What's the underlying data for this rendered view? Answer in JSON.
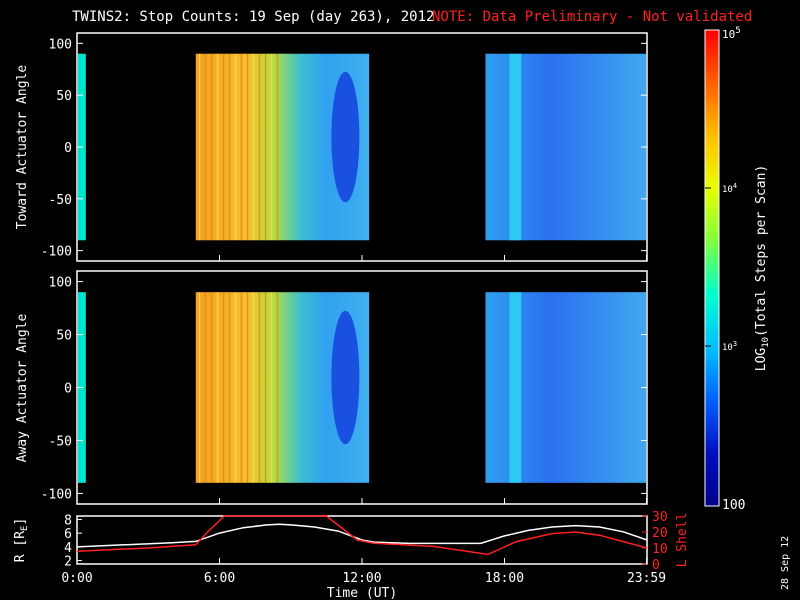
{
  "title": "TWINS2: Stop Counts: 19 Sep (day 263), 2012",
  "note": "NOTE: Data Preliminary - Not validated",
  "date_stamp": "28 Sep 12",
  "chart_data": [
    {
      "type": "heatmap",
      "ylabel": "Toward Actuator Angle",
      "yticks": [
        "100",
        "50",
        "0",
        "-50",
        "-100"
      ],
      "ylim": [
        -110,
        110
      ],
      "data_y_range": [
        -90,
        90
      ],
      "xlim_hours": [
        0,
        24
      ],
      "data_intervals_hours": [
        [
          0,
          0.33
        ],
        [
          5.0,
          12.3
        ],
        [
          17.2,
          24.0
        ]
      ],
      "colors": {
        "start": "#00e5d0",
        "mid_low": "#f2a020",
        "mid_high": "#30a8f0",
        "late": "#2a6af0"
      }
    },
    {
      "type": "heatmap",
      "ylabel": "Away Actuator Angle",
      "yticks": [
        "100",
        "50",
        "0",
        "-50",
        "-100"
      ],
      "ylim": [
        -110,
        110
      ],
      "data_y_range": [
        -90,
        90
      ],
      "xlim_hours": [
        0,
        24
      ],
      "data_intervals_hours": [
        [
          0,
          0.33
        ],
        [
          5.0,
          12.3
        ],
        [
          17.2,
          24.0
        ]
      ],
      "colors": {
        "start": "#00e5d0",
        "mid_low": "#f2a020",
        "mid_high": "#30a8f0",
        "late": "#2a6af0"
      }
    },
    {
      "type": "line",
      "ylabel": "R [R",
      "ylabel_sub": "E",
      "ylabel_close": "]",
      "yticks": [
        "8",
        "6",
        "4",
        "2"
      ],
      "ylim": [
        1.5,
        8.5
      ],
      "y2label": "L Shell",
      "y2ticks": [
        "30",
        "20",
        "10",
        "0"
      ],
      "y2lim": [
        0,
        30
      ],
      "xlabel": "Time (UT)",
      "xticks": [
        "0:00",
        "6:00",
        "12:00",
        "18:00",
        "23:59"
      ],
      "xtick_hours": [
        0,
        6,
        12,
        18,
        23.98
      ],
      "series": [
        {
          "color": "#ffffff",
          "x": [
            0,
            2,
            4,
            5.0,
            6,
            7,
            8,
            8.5,
            9,
            10,
            11,
            12,
            12.5,
            14,
            16,
            17,
            18,
            19,
            20,
            21,
            22,
            23,
            24
          ],
          "y": [
            4.0,
            4.3,
            4.6,
            4.8,
            6.0,
            6.8,
            7.2,
            7.3,
            7.2,
            6.9,
            6.3,
            5.0,
            4.7,
            4.5,
            4.5,
            4.5,
            5.6,
            6.4,
            6.9,
            7.1,
            6.9,
            6.2,
            5.0
          ]
        },
        {
          "color": "#ff2020",
          "axis": "right",
          "x": [
            0,
            3,
            5.0,
            5.5,
            6.2,
            10.5,
            11.8,
            12.5,
            15,
            17.3,
            18.5,
            20,
            21,
            22,
            23,
            24
          ],
          "y": [
            8,
            10,
            12,
            20,
            30,
            30,
            15,
            13,
            11,
            6,
            14,
            19,
            20,
            18,
            14,
            10
          ]
        }
      ]
    }
  ],
  "colorbar": {
    "label_pre": "LOG",
    "label_sub": "10",
    "label_post": "(Total Steps per Scan)",
    "tick_top_base": "10",
    "tick_top_exp": "5",
    "tick_upper_base": "10",
    "tick_upper_exp": "4",
    "tick_lower_base": "10",
    "tick_lower_exp": "3",
    "tick_bottom": "100",
    "colors": [
      "#ff0000",
      "#ff6000",
      "#ffc000",
      "#e8ff00",
      "#80ff40",
      "#00ffd0",
      "#00c0ff",
      "#0060ff",
      "#0010c0",
      "#00008a"
    ]
  }
}
